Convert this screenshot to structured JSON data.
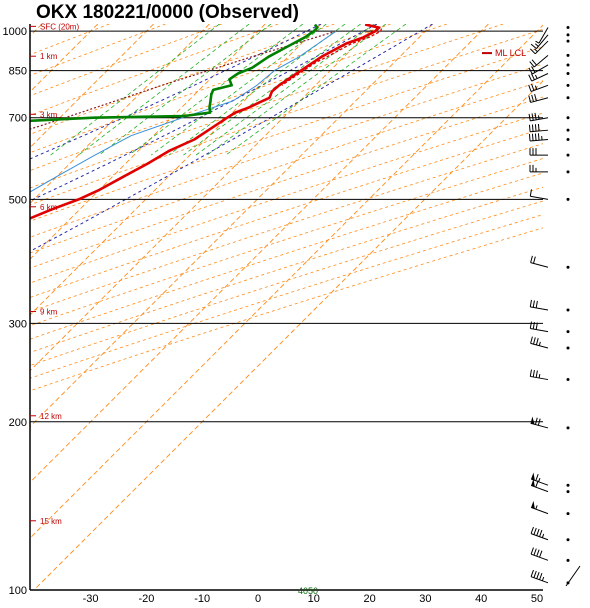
{
  "chart_data": {
    "type": "skew-t",
    "title": "OKX  180221/0000  (Observed)",
    "pressure_levels": [
      100,
      200,
      300,
      500,
      700,
      850,
      1000
    ],
    "pressure_tick_labels": [
      "100",
      "200",
      "300",
      "500",
      "700",
      "850",
      "1000"
    ],
    "temperature_ticks": [
      -30,
      -20,
      -10,
      0,
      10,
      20,
      30,
      40,
      50
    ],
    "temperature_tick_labels": [
      "-30",
      "-20",
      "-10",
      "0",
      "10",
      "20",
      "30",
      "40",
      "50"
    ],
    "ylim": [
      1030,
      100
    ],
    "height_labels": [
      {
        "p": 133,
        "label": "15 km"
      },
      {
        "p": 205,
        "label": "12 km"
      },
      {
        "p": 315,
        "label": "9 km"
      },
      {
        "p": 485,
        "label": "6 km"
      },
      {
        "p": 710,
        "label": "3 km"
      },
      {
        "p": 902,
        "label": "1 km"
      },
      {
        "p": 1020,
        "label": "SFC (20m)"
      }
    ],
    "temperature_profile": [
      {
        "p": 1028,
        "t": 18
      },
      {
        "p": 1015,
        "t": 21
      },
      {
        "p": 1000,
        "t": 21
      },
      {
        "p": 975,
        "t": 20
      },
      {
        "p": 950,
        "t": 18
      },
      {
        "p": 925,
        "t": 17
      },
      {
        "p": 900,
        "t": 16
      },
      {
        "p": 880,
        "t": 15.5
      },
      {
        "p": 860,
        "t": 15
      },
      {
        "p": 840,
        "t": 14.5
      },
      {
        "p": 820,
        "t": 14
      },
      {
        "p": 800,
        "t": 13.5
      },
      {
        "p": 780,
        "t": 13.3
      },
      {
        "p": 760,
        "t": 14
      },
      {
        "p": 745,
        "t": 13
      },
      {
        "p": 730,
        "t": 12
      },
      {
        "p": 715,
        "t": 10.5
      },
      {
        "p": 700,
        "t": 10
      },
      {
        "p": 670,
        "t": 9
      },
      {
        "p": 640,
        "t": 8
      },
      {
        "p": 610,
        "t": 5.5
      },
      {
        "p": 580,
        "t": 4
      },
      {
        "p": 550,
        "t": 2
      },
      {
        "p": 520,
        "t": 0
      },
      {
        "p": 500,
        "t": -2
      },
      {
        "p": 480,
        "t": -5
      },
      {
        "p": 450,
        "t": -9
      },
      {
        "p": 420,
        "t": -13
      },
      {
        "p": 400,
        "t": -16
      },
      {
        "p": 380,
        "t": -19
      },
      {
        "p": 360,
        "t": -22
      },
      {
        "p": 345,
        "t": -24
      },
      {
        "p": 330,
        "t": -27
      },
      {
        "p": 315,
        "t": -30
      },
      {
        "p": 300,
        "t": -32
      },
      {
        "p": 280,
        "t": -37
      },
      {
        "p": 260,
        "t": -41
      },
      {
        "p": 240,
        "t": -45
      },
      {
        "p": 220,
        "t": -50
      },
      {
        "p": 200,
        "t": -54
      },
      {
        "p": 195,
        "t": -55
      },
      {
        "p": 190,
        "t": -52
      },
      {
        "p": 180,
        "t": -51
      },
      {
        "p": 170,
        "t": -51
      },
      {
        "p": 160,
        "t": -53
      },
      {
        "p": 150,
        "t": -54
      },
      {
        "p": 140,
        "t": -57
      },
      {
        "p": 130,
        "t": -59
      },
      {
        "p": 120,
        "t": -61
      },
      {
        "p": 112,
        "t": -63
      },
      {
        "p": 100,
        "t": -67
      }
    ],
    "virtual_temperature_profile": [
      {
        "p": 1028,
        "t": 18.5
      },
      {
        "p": 1015,
        "t": 21.5
      },
      {
        "p": 1000,
        "t": 22
      },
      {
        "p": 975,
        "t": 21
      },
      {
        "p": 950,
        "t": 19
      },
      {
        "p": 925,
        "t": 18
      },
      {
        "p": 900,
        "t": 17
      },
      {
        "p": 880,
        "t": 16
      },
      {
        "p": 860,
        "t": 15.5
      },
      {
        "p": 840,
        "t": 15
      },
      {
        "p": 820,
        "t": 14.5
      },
      {
        "p": 800,
        "t": 14
      }
    ],
    "dewpoint_profile": [
      {
        "p": 1028,
        "t": 9
      },
      {
        "p": 1015,
        "t": 10
      },
      {
        "p": 1000,
        "t": 10
      },
      {
        "p": 975,
        "t": 9.5
      },
      {
        "p": 950,
        "t": 8.5
      },
      {
        "p": 925,
        "t": 7.5
      },
      {
        "p": 900,
        "t": 6.5
      },
      {
        "p": 880,
        "t": 6
      },
      {
        "p": 860,
        "t": 5.5
      },
      {
        "p": 840,
        "t": 4
      },
      {
        "p": 820,
        "t": 3.5
      },
      {
        "p": 800,
        "t": 5
      },
      {
        "p": 785,
        "t": 2.5
      },
      {
        "p": 770,
        "t": 3
      },
      {
        "p": 750,
        "t": 4
      },
      {
        "p": 730,
        "t": 5
      },
      {
        "p": 715,
        "t": 6
      },
      {
        "p": 705,
        "t": 2
      },
      {
        "p": 700,
        "t": -14
      },
      {
        "p": 690,
        "t": -26
      },
      {
        "p": 660,
        "t": -31
      },
      {
        "p": 620,
        "t": -31
      },
      {
        "p": 580,
        "t": -34
      },
      {
        "p": 550,
        "t": -33
      },
      {
        "p": 520,
        "t": -29
      },
      {
        "p": 500,
        "t": -27
      },
      {
        "p": 470,
        "t": -27
      },
      {
        "p": 440,
        "t": -30
      },
      {
        "p": 420,
        "t": -32
      },
      {
        "p": 400,
        "t": -33
      },
      {
        "p": 395,
        "t": -21
      },
      {
        "p": 390,
        "t": -29
      },
      {
        "p": 380,
        "t": -13
      },
      {
        "p": 370,
        "t": -17
      },
      {
        "p": 350,
        "t": -19
      },
      {
        "p": 330,
        "t": -18
      },
      {
        "p": 300,
        "t": -26
      },
      {
        "p": 280,
        "t": -34
      },
      {
        "p": 260,
        "t": -38
      },
      {
        "p": 240,
        "t": -37
      },
      {
        "p": 225,
        "t": -40
      },
      {
        "p": 210,
        "t": -42
      },
      {
        "p": 185,
        "t": -40
      },
      {
        "p": 180,
        "t": -42
      },
      {
        "p": 165,
        "t": -53
      },
      {
        "p": 150,
        "t": -55
      },
      {
        "p": 140,
        "t": -56
      },
      {
        "p": 128,
        "t": -58
      },
      {
        "p": 120,
        "t": -61
      },
      {
        "p": 110,
        "t": -61
      },
      {
        "p": 100,
        "t": -60
      }
    ],
    "wetbulb_profile": [
      {
        "p": 1000,
        "t": 14
      },
      {
        "p": 950,
        "t": 13
      },
      {
        "p": 900,
        "t": 12
      },
      {
        "p": 850,
        "t": 10
      },
      {
        "p": 800,
        "t": 9.5
      },
      {
        "p": 750,
        "t": 8
      },
      {
        "p": 700,
        "t": 2
      },
      {
        "p": 650,
        "t": -4
      },
      {
        "p": 600,
        "t": -7
      },
      {
        "p": 550,
        "t": -10
      },
      {
        "p": 500,
        "t": -13
      },
      {
        "p": 450,
        "t": -16
      },
      {
        "p": 400,
        "t": -21
      },
      {
        "p": 360,
        "t": -24
      },
      {
        "p": 340,
        "t": -25
      },
      {
        "p": 330,
        "t": -27
      },
      {
        "p": 300,
        "t": -33
      },
      {
        "p": 250,
        "t": -43
      },
      {
        "p": 200,
        "t": -53
      },
      {
        "p": 180,
        "t": -51
      },
      {
        "p": 150,
        "t": -54
      },
      {
        "p": 120,
        "t": -61
      },
      {
        "p": 100,
        "t": -67
      }
    ],
    "parcel_profile": [
      {
        "p": 1000,
        "t": 14
      },
      {
        "p": 900,
        "t": 3.5
      },
      {
        "p": 800,
        "t": -7.5
      },
      {
        "p": 700,
        "t": -19
      },
      {
        "p": 600,
        "t": -33
      },
      {
        "p": 500,
        "t": -49
      },
      {
        "p": 400,
        "t": -68
      },
      {
        "p": 330,
        "t": -83
      },
      {
        "p": 300,
        "t": -90
      }
    ],
    "dry_adiabat_thetas": [
      -30,
      -20,
      -10,
      0,
      10,
      20,
      30,
      40,
      50,
      60,
      70,
      80,
      90,
      100,
      110,
      120,
      130,
      140,
      150,
      160,
      170,
      180
    ],
    "mixing_ratio_lines": [
      2,
      3,
      4,
      6,
      8,
      10,
      12,
      14,
      16,
      20
    ],
    "mixing_ratio_label": "4050",
    "lcl_label": "ML LCL",
    "lcl_pressure": 925,
    "wind_barbs": [
      {
        "p": 103,
        "dir": 290,
        "kt": 45
      },
      {
        "p": 113,
        "dir": 290,
        "kt": 40
      },
      {
        "p": 123,
        "dir": 290,
        "kt": 45
      },
      {
        "p": 137,
        "dir": 290,
        "kt": 55
      },
      {
        "p": 150,
        "dir": 290,
        "kt": 60
      },
      {
        "p": 154,
        "dir": 290,
        "kt": 65
      },
      {
        "p": 195,
        "dir": 285,
        "kt": 70
      },
      {
        "p": 238,
        "dir": 280,
        "kt": 35
      },
      {
        "p": 271,
        "dir": 285,
        "kt": 35
      },
      {
        "p": 290,
        "dir": 280,
        "kt": 30
      },
      {
        "p": 317,
        "dir": 280,
        "kt": 30
      },
      {
        "p": 378,
        "dir": 285,
        "kt": 20
      },
      {
        "p": 500,
        "dir": 280,
        "kt": 10
      },
      {
        "p": 560,
        "dir": 270,
        "kt": 25
      },
      {
        "p": 600,
        "dir": 270,
        "kt": 30
      },
      {
        "p": 640,
        "dir": 265,
        "kt": 45
      },
      {
        "p": 665,
        "dir": 265,
        "kt": 40
      },
      {
        "p": 700,
        "dir": 260,
        "kt": 35
      },
      {
        "p": 760,
        "dir": 255,
        "kt": 30
      },
      {
        "p": 800,
        "dir": 250,
        "kt": 25
      },
      {
        "p": 840,
        "dir": 245,
        "kt": 25
      },
      {
        "p": 870,
        "dir": 240,
        "kt": 20
      },
      {
        "p": 905,
        "dir": 230,
        "kt": 20
      },
      {
        "p": 960,
        "dir": 225,
        "kt": 15
      },
      {
        "p": 985,
        "dir": 220,
        "kt": 15
      },
      {
        "p": 1015,
        "dir": 210,
        "kt": 5
      }
    ],
    "hodograph_stub": "diagonal line at lower right",
    "colors": {
      "temperature": "#e00000",
      "virtual_temperature": "#e00000",
      "dewpoint": "#008000",
      "wetbulb": "#3a8fd8",
      "isotherm": "#ff8c1a",
      "dry_adiabat": "#ff8c1a",
      "moist_adiabat": "#2a2aa8",
      "mixing_ratio": "#22b022",
      "parcel": "#8a1a1a",
      "isobar": "#000000",
      "height_label": "#c00000",
      "wind_barb": "#000000"
    }
  }
}
